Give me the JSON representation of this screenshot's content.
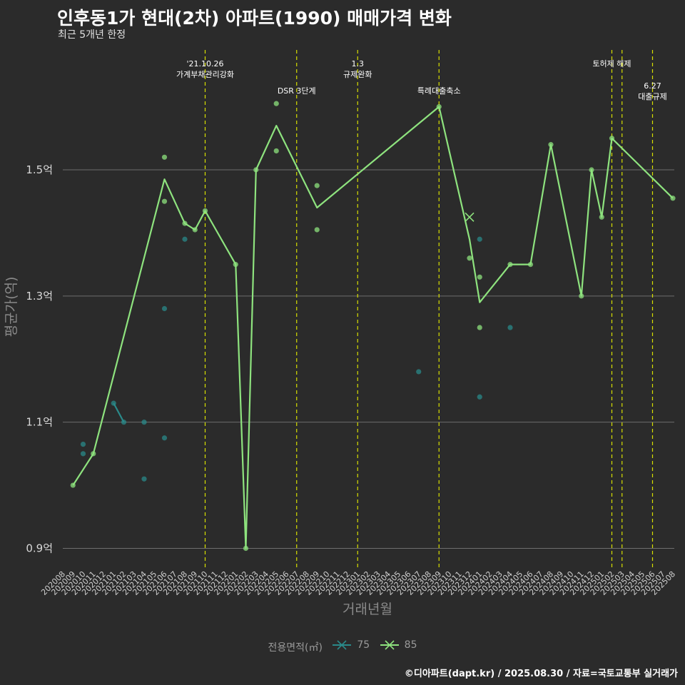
{
  "header": {
    "title": "인후동1가 현대(2차) 아파트(1990) 매매가격 변화",
    "subtitle": "최근 5개년 한정"
  },
  "caption": "©디아파트(dapt.kr) / 2025.08.30 / 자료=국토교통부 실거래가",
  "colors": {
    "background": "#2b2b2b",
    "grid": "#6e6e6e",
    "s75": "#2a8a8a",
    "s85": "#8ee37e",
    "vline": "#d8e000"
  },
  "chart_data": {
    "type": "line",
    "title": "인후동1가 현대(2차) 아파트(1990) 매매가격 변화",
    "xlabel": "거래년월",
    "ylabel": "평균가(억)",
    "ylim": [
      0.87,
      1.69
    ],
    "yticks": [
      0.9,
      1.1,
      1.3,
      1.5
    ],
    "ytick_labels": [
      "0.9억",
      "1.1억",
      "1.3억",
      "1.5억"
    ],
    "months": [
      "202008",
      "202009",
      "202010",
      "202011",
      "202012",
      "202101",
      "202102",
      "202103",
      "202104",
      "202105",
      "202106",
      "202107",
      "202108",
      "202109",
      "202110",
      "202111",
      "202112",
      "202201",
      "202202",
      "202203",
      "202204",
      "202205",
      "202206",
      "202207",
      "202208",
      "202209",
      "202210",
      "202211",
      "202212",
      "202301",
      "202302",
      "202303",
      "202304",
      "202305",
      "202306",
      "202307",
      "202308",
      "202309",
      "202310",
      "202311",
      "202312",
      "202401",
      "202402",
      "202403",
      "202404",
      "202405",
      "202406",
      "202407",
      "202408",
      "202409",
      "202410",
      "202411",
      "202412",
      "202501",
      "202502",
      "202503",
      "202504",
      "202505",
      "202506",
      "202507",
      "202508"
    ],
    "legend_title": "전용면적(㎡)",
    "series": [
      {
        "name": "75",
        "line": [
          {
            "x": "202101",
            "y": 1.13
          },
          {
            "x": "202102",
            "y": 1.1
          }
        ],
        "points": [
          {
            "x": "202010",
            "y": 1.065
          },
          {
            "x": "202010",
            "y": 1.05
          },
          {
            "x": "202101",
            "y": 1.13
          },
          {
            "x": "202102",
            "y": 1.1
          },
          {
            "x": "202104",
            "y": 1.1
          },
          {
            "x": "202104",
            "y": 1.01
          },
          {
            "x": "202106",
            "y": 1.075
          },
          {
            "x": "202106",
            "y": 1.28
          },
          {
            "x": "202108",
            "y": 1.39
          },
          {
            "x": "202307",
            "y": 1.18
          },
          {
            "x": "202401",
            "y": 1.39
          },
          {
            "x": "202401",
            "y": 1.14
          },
          {
            "x": "202404",
            "y": 1.25
          }
        ]
      },
      {
        "name": "85",
        "line": [
          {
            "x": "202009",
            "y": 1.0
          },
          {
            "x": "202011",
            "y": 1.05
          },
          {
            "x": "202106",
            "y": 1.485
          },
          {
            "x": "202108",
            "y": 1.415
          },
          {
            "x": "202109",
            "y": 1.405
          },
          {
            "x": "202110",
            "y": 1.435
          },
          {
            "x": "202201",
            "y": 1.35
          },
          {
            "x": "202202",
            "y": 0.9
          },
          {
            "x": "202203",
            "y": 1.5
          },
          {
            "x": "202205",
            "y": 1.57
          },
          {
            "x": "202209",
            "y": 1.44
          },
          {
            "x": "202309",
            "y": 1.6
          },
          {
            "x": "202312",
            "y": 1.39
          },
          {
            "x": "202401",
            "y": 1.29
          },
          {
            "x": "202404",
            "y": 1.35
          },
          {
            "x": "202406",
            "y": 1.35
          },
          {
            "x": "202408",
            "y": 1.54
          },
          {
            "x": "202411",
            "y": 1.3
          },
          {
            "x": "202412",
            "y": 1.5
          },
          {
            "x": "202501",
            "y": 1.425
          },
          {
            "x": "202502",
            "y": 1.55
          },
          {
            "x": "202508",
            "y": 1.455
          }
        ],
        "points": [
          {
            "x": "202009",
            "y": 1.0
          },
          {
            "x": "202011",
            "y": 1.05
          },
          {
            "x": "202106",
            "y": 1.52
          },
          {
            "x": "202106",
            "y": 1.45
          },
          {
            "x": "202108",
            "y": 1.415
          },
          {
            "x": "202109",
            "y": 1.405
          },
          {
            "x": "202110",
            "y": 1.435
          },
          {
            "x": "202201",
            "y": 1.35
          },
          {
            "x": "202202",
            "y": 0.9
          },
          {
            "x": "202203",
            "y": 1.5
          },
          {
            "x": "202205",
            "y": 1.605
          },
          {
            "x": "202205",
            "y": 1.53
          },
          {
            "x": "202209",
            "y": 1.475
          },
          {
            "x": "202209",
            "y": 1.405
          },
          {
            "x": "202309",
            "y": 1.6
          },
          {
            "x": "202312",
            "y": 1.36
          },
          {
            "x": "202401",
            "y": 1.33
          },
          {
            "x": "202401",
            "y": 1.25
          },
          {
            "x": "202404",
            "y": 1.35
          },
          {
            "x": "202406",
            "y": 1.35
          },
          {
            "x": "202408",
            "y": 1.54
          },
          {
            "x": "202411",
            "y": 1.3
          },
          {
            "x": "202412",
            "y": 1.5
          },
          {
            "x": "202501",
            "y": 1.425
          },
          {
            "x": "202502",
            "y": 1.55
          },
          {
            "x": "202508",
            "y": 1.455
          }
        ],
        "cross": {
          "x": "202312",
          "y": 1.425
        }
      }
    ],
    "events": [
      {
        "x": "202110",
        "lines": [
          "'21.10.26",
          "가계부채관리강화"
        ],
        "row": 0
      },
      {
        "x": "202207",
        "lines": [
          "DSR 3단계"
        ],
        "row": 1
      },
      {
        "x": "202301",
        "lines": [
          "1.3",
          "규제완화"
        ],
        "row": 0
      },
      {
        "x": "202309",
        "lines": [
          "특례대출축소"
        ],
        "row": 1
      },
      {
        "x": "202502",
        "lines": [
          "토허제 해제"
        ],
        "row": 0
      },
      {
        "x": "202503",
        "lines": [],
        "row": 0
      },
      {
        "x": "202506",
        "lines": [
          "6.27",
          "대출규제"
        ],
        "row": 2
      }
    ]
  }
}
